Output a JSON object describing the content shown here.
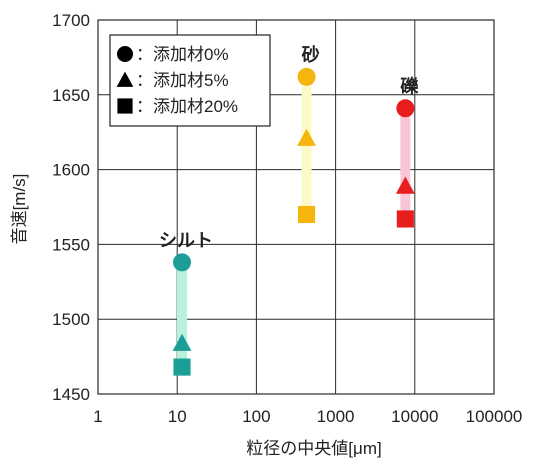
{
  "chart_data": {
    "type": "scatter",
    "xlabel": "粒径の中央値[μm]",
    "ylabel": "音速[m/s]",
    "xscale": "log",
    "xlim": [
      1,
      100000
    ],
    "ylim": [
      1450,
      1700
    ],
    "grid": true,
    "x_ticks": [
      1,
      10,
      100,
      1000,
      10000,
      100000
    ],
    "x_tick_labels": [
      "1",
      "10",
      "100",
      "1000",
      "10000",
      "100000"
    ],
    "y_ticks": [
      1450,
      1500,
      1550,
      1600,
      1650,
      1700
    ],
    "y_tick_labels": [
      "1450",
      "1500",
      "1550",
      "1600",
      "1650",
      "1700"
    ],
    "legend": {
      "placement": "top-left",
      "entries": [
        {
          "marker": "circle",
          "label": "：添加材0%"
        },
        {
          "marker": "triangle",
          "label": "：添加材5%"
        },
        {
          "marker": "square",
          "label": "：添加材20%"
        }
      ]
    },
    "groups": [
      {
        "label": "シルト",
        "x": 11.5,
        "color": "#1a9e96",
        "band_color": "#b8f2df",
        "points": [
          {
            "marker": "circle",
            "y": 1538
          },
          {
            "marker": "triangle",
            "y": 1484
          },
          {
            "marker": "square",
            "y": 1468
          }
        ]
      },
      {
        "label": "砂",
        "x": 430,
        "color": "#f5b50d",
        "band_color": "#fcfbc8",
        "points": [
          {
            "marker": "circle",
            "y": 1662
          },
          {
            "marker": "triangle",
            "y": 1621
          },
          {
            "marker": "square",
            "y": 1570
          }
        ]
      },
      {
        "label": "礫",
        "x": 7600,
        "color": "#e81e1e",
        "band_color": "#f9c6d8",
        "points": [
          {
            "marker": "circle",
            "y": 1641
          },
          {
            "marker": "triangle",
            "y": 1589
          },
          {
            "marker": "square",
            "y": 1567
          }
        ]
      }
    ]
  }
}
